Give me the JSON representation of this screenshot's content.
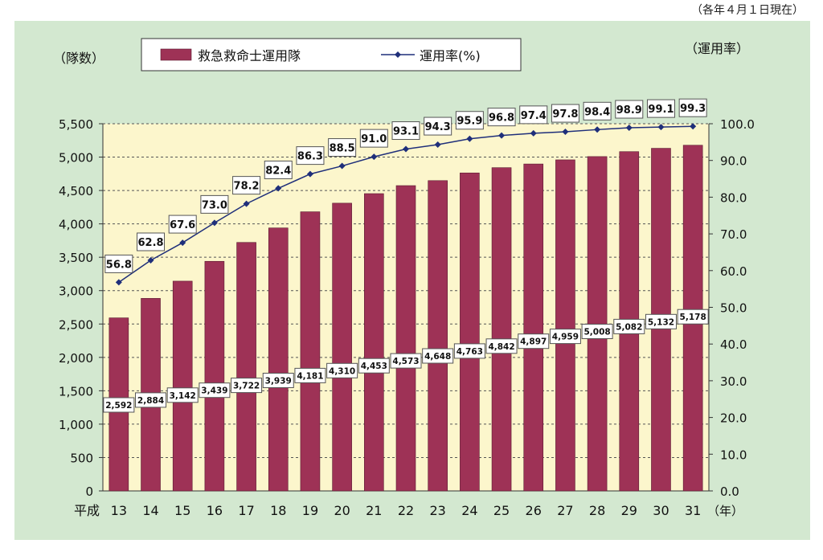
{
  "note": "（各年４月１日現在）",
  "chart_data": {
    "type": "bar+line",
    "y_left_label": "（隊数）",
    "y_right_label": "（運用率）",
    "x_prefix": "平成",
    "x_unit": "（年）",
    "categories": [
      "13",
      "14",
      "15",
      "16",
      "17",
      "18",
      "19",
      "20",
      "21",
      "22",
      "23",
      "24",
      "25",
      "26",
      "27",
      "28",
      "29",
      "30",
      "31"
    ],
    "series": [
      {
        "name": "救急救命士運用隊",
        "kind": "bar",
        "axis": "left",
        "color": "#9e3256",
        "values": [
          2592,
          2884,
          3142,
          3439,
          3722,
          3939,
          4181,
          4310,
          4453,
          4573,
          4648,
          4763,
          4842,
          4897,
          4959,
          5008,
          5082,
          5132,
          5178
        ],
        "labels": [
          "2,592",
          "2,884",
          "3,142",
          "3,439",
          "3,722",
          "3,939",
          "4,181",
          "4,310",
          "4,453",
          "4,573",
          "4,648",
          "4,763",
          "4,842",
          "4,897",
          "4,959",
          "5,008",
          "5,082",
          "5,132",
          "5,178"
        ]
      },
      {
        "name": "運用率(%)",
        "kind": "line",
        "axis": "right",
        "color": "#1f2f7a",
        "values": [
          56.8,
          62.8,
          67.6,
          73.0,
          78.2,
          82.4,
          86.3,
          88.5,
          91.0,
          93.1,
          94.3,
          95.9,
          96.8,
          97.4,
          97.8,
          98.4,
          98.9,
          99.1,
          99.3
        ],
        "labels": [
          "56.8",
          "62.8",
          "67.6",
          "73.0",
          "78.2",
          "82.4",
          "86.3",
          "88.5",
          "91.0",
          "93.1",
          "94.3",
          "95.9",
          "96.8",
          "97.4",
          "97.8",
          "98.4",
          "98.9",
          "99.1",
          "99.3"
        ]
      }
    ],
    "y_left": {
      "min": 0,
      "max": 5500,
      "ticks": [
        "0",
        "500",
        "1,000",
        "1,500",
        "2,000",
        "2,500",
        "3,000",
        "3,500",
        "4,000",
        "4,500",
        "5,000",
        "5,500"
      ]
    },
    "y_right": {
      "min": 0,
      "max": 100,
      "ticks": [
        "0.0",
        "10.0",
        "20.0",
        "30.0",
        "40.0",
        "50.0",
        "60.0",
        "70.0",
        "80.0",
        "90.0",
        "100.0"
      ]
    },
    "colors": {
      "outer_bg": "#d3e8d0",
      "plot_bg": "#fcf6cc",
      "grid": "#555555"
    },
    "grid": true,
    "legend_placement": "top-center"
  }
}
